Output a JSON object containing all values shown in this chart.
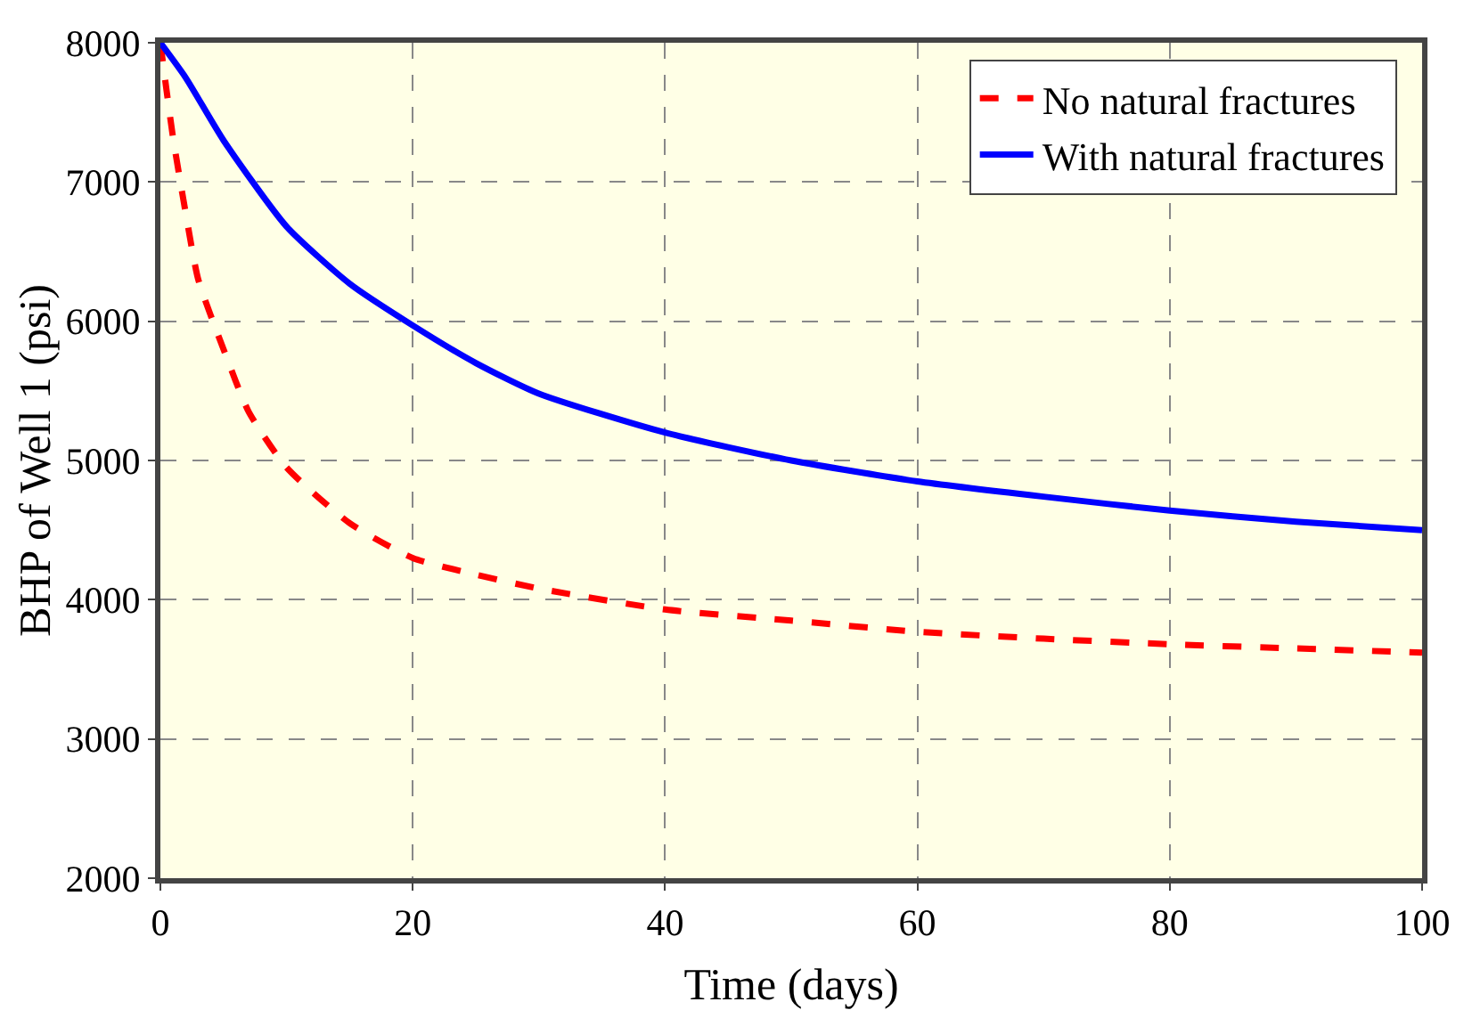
{
  "chart_data": {
    "type": "line",
    "xlabel": "Time (days)",
    "ylabel": "BHP of Well 1 (psi)",
    "xlim": [
      0,
      100
    ],
    "xticks": [
      0,
      20,
      40,
      60,
      80,
      100
    ],
    "ylim": [
      2000,
      8000
    ],
    "yticks": [
      2000,
      3000,
      4000,
      5000,
      6000,
      7000,
      8000
    ],
    "grid": true,
    "legend": "top right",
    "marker": "none",
    "series": [
      {
        "name": "No natural fractures",
        "color": "#ff0000",
        "line_style": "dashed",
        "x": [
          0,
          0.5,
          1,
          2,
          3,
          5,
          7,
          10,
          15,
          20,
          25,
          30,
          40,
          50,
          60,
          70,
          80,
          90,
          100
        ],
        "values": [
          8000,
          7650,
          7320,
          6780,
          6300,
          5800,
          5350,
          4950,
          4550,
          4300,
          4180,
          4080,
          3930,
          3850,
          3770,
          3720,
          3680,
          3650,
          3620
        ]
      },
      {
        "name": "With natural fractures",
        "color": "#0000ff",
        "line_style": "solid",
        "x": [
          0,
          2,
          5,
          10,
          15,
          20,
          25,
          30,
          40,
          50,
          60,
          70,
          80,
          90,
          100
        ],
        "values": [
          8000,
          7750,
          7300,
          6680,
          6270,
          5970,
          5700,
          5480,
          5200,
          5000,
          4850,
          4740,
          4640,
          4560,
          4500
        ]
      }
    ]
  }
}
